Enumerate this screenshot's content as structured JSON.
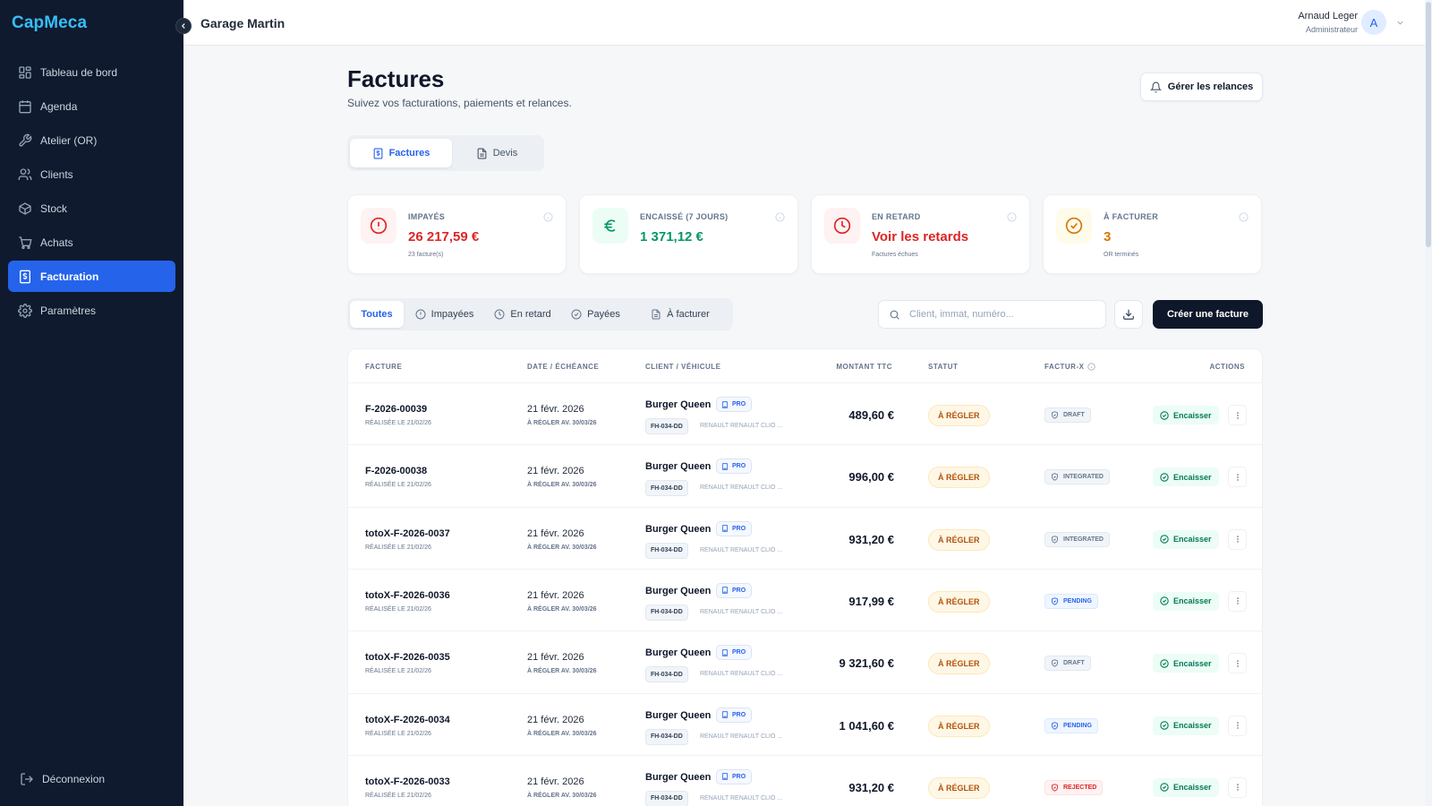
{
  "app": {
    "logo": "CapMeca",
    "garage_name": "Garage Martin"
  },
  "user": {
    "name": "Arnaud Leger",
    "role": "Administrateur",
    "initial": "A"
  },
  "sidebar": {
    "items": [
      {
        "label": "Tableau de bord",
        "icon": "dashboard-icon"
      },
      {
        "label": "Agenda",
        "icon": "calendar-icon"
      },
      {
        "label": "Atelier (OR)",
        "icon": "wrench-icon"
      },
      {
        "label": "Clients",
        "icon": "users-icon"
      },
      {
        "label": "Stock",
        "icon": "box-icon"
      },
      {
        "label": "Achats",
        "icon": "cart-icon"
      },
      {
        "label": "Facturation",
        "icon": "invoice-icon",
        "active": true
      },
      {
        "label": "Paramètres",
        "icon": "gear-icon"
      }
    ],
    "logout_label": "Déconnexion"
  },
  "page": {
    "title": "Factures",
    "subtitle": "Suivez vos facturations, paiements et relances.",
    "relances_button": "Gérer les relances"
  },
  "tabs": [
    {
      "label": "Factures",
      "active": true
    },
    {
      "label": "Devis",
      "active": false
    }
  ],
  "kpis": [
    {
      "label": "IMPAYÉS",
      "value": "26 217,59 €",
      "sub": "23 facture(s)",
      "color": "#dc2626",
      "icon": "alert-circle-icon"
    },
    {
      "label": "ENCAISSÉ (7 JOURS)",
      "value": "1 371,12 €",
      "sub": "",
      "color": "#059669",
      "icon": "euro-icon"
    },
    {
      "label": "EN RETARD",
      "value": "Voir les retards",
      "sub": "Factures échues",
      "color": "#dc2626",
      "icon": "clock-icon"
    },
    {
      "label": "À FACTURER",
      "value": "3",
      "sub": "OR terminés",
      "color": "#d97706",
      "icon": "check-circle-icon"
    }
  ],
  "filters": [
    {
      "label": "Toutes",
      "active": true
    },
    {
      "label": "Impayées"
    },
    {
      "label": "En retard"
    },
    {
      "label": "Payées"
    },
    {
      "label": "À facturer"
    }
  ],
  "search": {
    "placeholder": "Client, immat, numéro...",
    "value": ""
  },
  "create_button": "Créer une facture",
  "table": {
    "columns": [
      "FACTURE",
      "DATE / ÉCHÉANCE",
      "CLIENT / VÉHICULE",
      "MONTANT TTC",
      "STATUT",
      "FACTUR-X",
      "ACTIONS"
    ],
    "rows": [
      {
        "number": "F-2026-00039",
        "realised": "RÉALISÉE LE 21/02/26",
        "date": "21 févr. 2026",
        "due": "À RÉGLER AV. 30/03/26",
        "client": "Burger Queen",
        "pro": "PRO",
        "plate": "FH-034-DD",
        "vehicle": "RENAULT RENAULT CLIO ...",
        "amount": "489,60 €",
        "status": "À RÉGLER",
        "facturx": "DRAFT",
        "action": "Encaisser"
      },
      {
        "number": "F-2026-00038",
        "realised": "RÉALISÉE LE 21/02/26",
        "date": "21 févr. 2026",
        "due": "À RÉGLER AV. 30/03/26",
        "client": "Burger Queen",
        "pro": "PRO",
        "plate": "FH-034-DD",
        "vehicle": "RENAULT RENAULT CLIO ...",
        "amount": "996,00 €",
        "status": "À RÉGLER",
        "facturx": "INTEGRATED",
        "action": "Encaisser"
      },
      {
        "number": "totoX-F-2026-0037",
        "realised": "RÉALISÉE LE 21/02/26",
        "date": "21 févr. 2026",
        "due": "À RÉGLER AV. 30/03/26",
        "client": "Burger Queen",
        "pro": "PRO",
        "plate": "FH-034-DD",
        "vehicle": "RENAULT RENAULT CLIO ...",
        "amount": "931,20 €",
        "status": "À RÉGLER",
        "facturx": "INTEGRATED",
        "action": "Encaisser"
      },
      {
        "number": "totoX-F-2026-0036",
        "realised": "RÉALISÉE LE 21/02/26",
        "date": "21 févr. 2026",
        "due": "À RÉGLER AV. 30/03/26",
        "client": "Burger Queen",
        "pro": "PRO",
        "plate": "FH-034-DD",
        "vehicle": "RENAULT RENAULT CLIO ...",
        "amount": "917,99 €",
        "status": "À RÉGLER",
        "facturx": "PENDING",
        "action": "Encaisser"
      },
      {
        "number": "totoX-F-2026-0035",
        "realised": "RÉALISÉE LE 21/02/26",
        "date": "21 févr. 2026",
        "due": "À RÉGLER AV. 30/03/26",
        "client": "Burger Queen",
        "pro": "PRO",
        "plate": "FH-034-DD",
        "vehicle": "RENAULT RENAULT CLIO ...",
        "amount": "9 321,60 €",
        "status": "À RÉGLER",
        "facturx": "DRAFT",
        "action": "Encaisser"
      },
      {
        "number": "totoX-F-2026-0034",
        "realised": "RÉALISÉE LE 21/02/26",
        "date": "21 févr. 2026",
        "due": "À RÉGLER AV. 30/03/26",
        "client": "Burger Queen",
        "pro": "PRO",
        "plate": "FH-034-DD",
        "vehicle": "RENAULT RENAULT CLIO ...",
        "amount": "1 041,60 €",
        "status": "À RÉGLER",
        "facturx": "PENDING",
        "action": "Encaisser"
      },
      {
        "number": "totoX-F-2026-0033",
        "realised": "RÉALISÉE LE 21/02/26",
        "date": "21 févr. 2026",
        "due": "À RÉGLER AV. 30/03/26",
        "client": "Burger Queen",
        "pro": "PRO",
        "plate": "FH-034-DD",
        "vehicle": "RENAULT RENAULT CLIO ...",
        "amount": "931,20 €",
        "status": "À RÉGLER",
        "facturx": "REJECTED",
        "action": "Encaisser"
      }
    ]
  },
  "colors": {
    "accent": "#2563eb",
    "sidebar_bg": "#0f1a2e",
    "status_warning": "#b45309",
    "success": "#047857",
    "danger": "#dc2626"
  }
}
